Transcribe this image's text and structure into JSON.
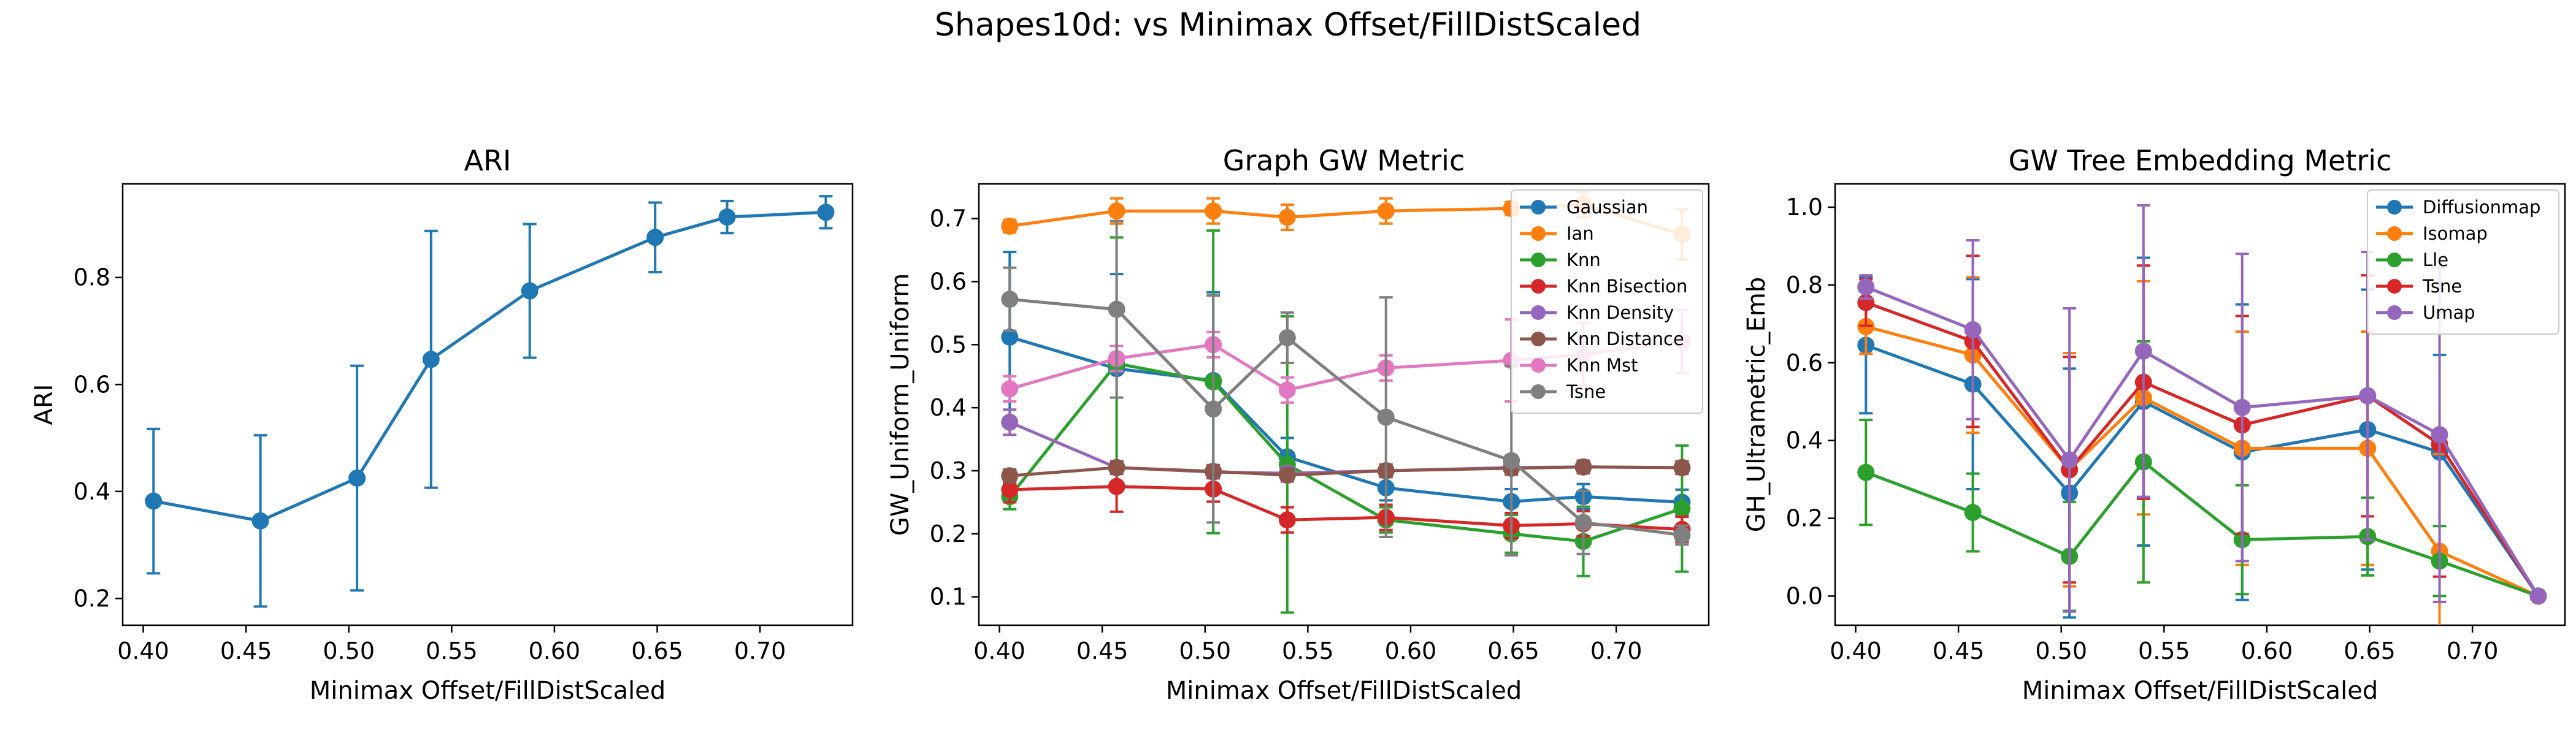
{
  "figure": {
    "suptitle": "Shapes10d: vs Minimax Offset/FillDistScaled"
  },
  "chart_data": [
    {
      "type": "line",
      "title": "ARI",
      "xlabel": "Minimax Offset/FillDistScaled",
      "ylabel": "ARI",
      "xlim": [
        0.39,
        0.745
      ],
      "ylim": [
        0.15,
        0.975
      ],
      "xticks": [
        0.4,
        0.45,
        0.5,
        0.55,
        0.6,
        0.65,
        0.7
      ],
      "xtick_labels": [
        "0.40",
        "0.45",
        "0.50",
        "0.55",
        "0.60",
        "0.65",
        "0.70"
      ],
      "yticks": [
        0.2,
        0.4,
        0.6,
        0.8
      ],
      "ytick_labels": [
        "0.2",
        "0.4",
        "0.6",
        "0.8"
      ],
      "grid": false,
      "legend": null,
      "x": [
        0.405,
        0.457,
        0.504,
        0.54,
        0.588,
        0.649,
        0.684,
        0.732
      ],
      "series": [
        {
          "color": "#1f77b4",
          "values": [
            0.382,
            0.345,
            0.425,
            0.647,
            0.775,
            0.875,
            0.913,
            0.922
          ],
          "errors": [
            0.135,
            0.16,
            0.21,
            0.24,
            0.125,
            0.065,
            0.03,
            0.03
          ]
        }
      ]
    },
    {
      "type": "line",
      "title": "Graph GW Metric",
      "xlabel": "Minimax Offset/FillDistScaled",
      "ylabel": "GW_Uniform_Uniform",
      "xlim": [
        0.39,
        0.745
      ],
      "ylim": [
        0.055,
        0.755
      ],
      "xticks": [
        0.4,
        0.45,
        0.5,
        0.55,
        0.6,
        0.65,
        0.7
      ],
      "xtick_labels": [
        "0.40",
        "0.45",
        "0.50",
        "0.55",
        "0.60",
        "0.65",
        "0.70"
      ],
      "yticks": [
        0.1,
        0.2,
        0.3,
        0.4,
        0.5,
        0.6,
        0.7
      ],
      "ytick_labels": [
        "0.1",
        "0.2",
        "0.3",
        "0.4",
        "0.5",
        "0.6",
        "0.7"
      ],
      "grid": false,
      "legend": "top-right",
      "x": [
        0.405,
        0.457,
        0.504,
        0.54,
        0.588,
        0.649,
        0.684,
        0.732
      ],
      "series": [
        {
          "name": "Gaussian",
          "color": "#1f77b4",
          "values": [
            0.512,
            0.462,
            0.443,
            0.322,
            0.273,
            0.251,
            0.259,
            0.25
          ],
          "errors": [
            0.135,
            0.15,
            0.14,
            0.03,
            0.02,
            0.02,
            0.02,
            0.02
          ]
        },
        {
          "name": "Ian",
          "color": "#ff7f0e",
          "values": [
            0.688,
            0.712,
            0.712,
            0.702,
            0.712,
            0.716,
            0.722,
            0.675
          ],
          "errors": [
            0.01,
            0.02,
            0.02,
            0.02,
            0.02,
            0.01,
            0.02,
            0.04
          ]
        },
        {
          "name": "Knn",
          "color": "#2ca02c",
          "values": [
            0.259,
            0.47,
            0.441,
            0.31,
            0.222,
            0.2,
            0.188,
            0.24
          ],
          "errors": [
            0.02,
            0.2,
            0.24,
            0.235,
            0.02,
            0.03,
            0.055,
            0.1
          ]
        },
        {
          "name": "Knn Bisection",
          "color": "#d62728",
          "values": [
            0.27,
            0.275,
            0.271,
            0.222,
            0.226,
            0.213,
            0.216,
            0.207
          ],
          "errors": [
            0.02,
            0.04,
            0.02,
            0.02,
            0.02,
            0.02,
            0.02,
            0.02
          ]
        },
        {
          "name": "Knn Density",
          "color": "#9467bd",
          "values": [
            0.377,
            0.305,
            0.298,
            0.296,
            0.3,
            0.305,
            0.306,
            0.305
          ],
          "errors": [
            0.02,
            0.01,
            0.01,
            0.01,
            0.01,
            0.01,
            0.01,
            0.01
          ]
        },
        {
          "name": "Knn Distance",
          "color": "#8c564b",
          "values": [
            0.292,
            0.305,
            0.299,
            0.293,
            0.3,
            0.304,
            0.306,
            0.305
          ],
          "errors": [
            0.01,
            0.01,
            0.01,
            0.01,
            0.01,
            0.01,
            0.01,
            0.01
          ]
        },
        {
          "name": "Knn Mst",
          "color": "#e377c2",
          "values": [
            0.43,
            0.478,
            0.5,
            0.428,
            0.463,
            0.475,
            0.485,
            0.505
          ],
          "errors": [
            0.02,
            0.02,
            0.02,
            0.02,
            0.02,
            0.065,
            0.05,
            0.05
          ]
        },
        {
          "name": "Tsne",
          "color": "#7f7f7f",
          "values": [
            0.572,
            0.556,
            0.398,
            0.511,
            0.385,
            0.316,
            0.218,
            0.198
          ],
          "errors": [
            0.05,
            0.14,
            0.18,
            0.04,
            0.19,
            0.15,
            0.05,
            0.015
          ]
        }
      ]
    },
    {
      "type": "line",
      "title": "GW Tree Embedding Metric",
      "xlabel": "Minimax Offset/FillDistScaled",
      "ylabel": "GH_Ultrametric_Emb",
      "xlim": [
        0.39,
        0.745
      ],
      "ylim": [
        -0.075,
        1.06
      ],
      "xticks": [
        0.4,
        0.45,
        0.5,
        0.55,
        0.6,
        0.65,
        0.7
      ],
      "xtick_labels": [
        "0.40",
        "0.45",
        "0.50",
        "0.55",
        "0.60",
        "0.65",
        "0.70"
      ],
      "yticks": [
        0.0,
        0.2,
        0.4,
        0.6,
        0.8,
        1.0
      ],
      "ytick_labels": [
        "0.0",
        "0.2",
        "0.4",
        "0.6",
        "0.8",
        "1.0"
      ],
      "grid": false,
      "legend": "top-right",
      "x": [
        0.405,
        0.457,
        0.504,
        0.54,
        0.588,
        0.649,
        0.684,
        0.732
      ],
      "series": [
        {
          "name": "Diffusionmap",
          "color": "#1f77b4",
          "values": [
            0.645,
            0.545,
            0.265,
            0.5,
            0.37,
            0.428,
            0.37,
            0.0
          ],
          "errors": [
            0.175,
            0.27,
            0.32,
            0.37,
            0.38,
            0.36,
            0.25,
            0.005
          ]
        },
        {
          "name": "Isomap",
          "color": "#ff7f0e",
          "values": [
            0.693,
            0.62,
            0.325,
            0.51,
            0.38,
            0.38,
            0.115,
            0.0
          ],
          "errors": [
            0.07,
            0.2,
            0.3,
            0.3,
            0.3,
            0.3,
            0.25,
            0.005
          ]
        },
        {
          "name": "Lle",
          "color": "#2ca02c",
          "values": [
            0.318,
            0.215,
            0.102,
            0.345,
            0.145,
            0.153,
            0.09,
            0.0
          ],
          "errors": [
            0.135,
            0.1,
            0.14,
            0.31,
            0.14,
            0.1,
            0.09,
            0.005
          ]
        },
        {
          "name": "Tsne",
          "color": "#d62728",
          "values": [
            0.755,
            0.655,
            0.325,
            0.55,
            0.44,
            0.515,
            0.39,
            0.0
          ],
          "errors": [
            0.06,
            0.22,
            0.29,
            0.3,
            0.28,
            0.31,
            0.34,
            0.005
          ]
        },
        {
          "name": "Umap",
          "color": "#9467bd",
          "values": [
            0.795,
            0.685,
            0.35,
            0.63,
            0.485,
            0.515,
            0.415,
            0.0
          ],
          "errors": [
            0.03,
            0.23,
            0.39,
            0.375,
            0.395,
            0.37,
            0.43,
            0.005
          ]
        }
      ]
    }
  ]
}
